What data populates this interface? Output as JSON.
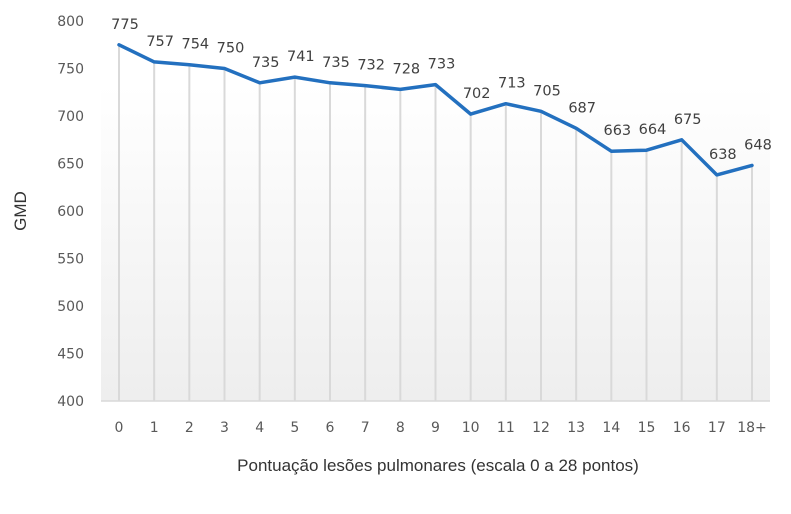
{
  "chart_data": {
    "type": "line",
    "title": "",
    "xlabel": "Pontuação lesões pulmonares (escala 0 a 28 pontos)",
    "ylabel": "GMD",
    "categories": [
      "0",
      "1",
      "2",
      "3",
      "4",
      "5",
      "6",
      "7",
      "8",
      "9",
      "10",
      "11",
      "12",
      "13",
      "14",
      "15",
      "16",
      "17",
      "18+"
    ],
    "series": [
      {
        "name": "GMD",
        "values": [
          775,
          757,
          754,
          750,
          735,
          741,
          735,
          732,
          728,
          733,
          702,
          713,
          705,
          687,
          663,
          664,
          675,
          638,
          648
        ],
        "color": "#2370BF"
      }
    ],
    "ylim": [
      400,
      800
    ],
    "yticks": [
      400,
      450,
      500,
      550,
      600,
      650,
      700,
      750,
      800
    ],
    "grid": "vertical drop lines per category",
    "legend": "none",
    "data_labels": true
  },
  "colors": {
    "line": "#2370BF",
    "tick_text": "#595959",
    "label_text": "#404040",
    "grid": "#D9D9D9",
    "plot_bg_top": "#FFFFFF",
    "plot_bg_bottom": "#EFEFEF"
  }
}
